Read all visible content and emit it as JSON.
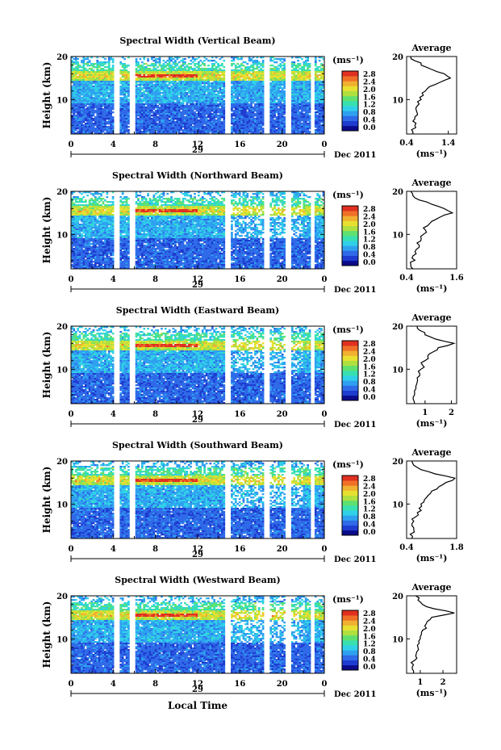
{
  "figure": {
    "xaxis_title": "Local Time",
    "date_label": "Dec 2011",
    "day_label": "29",
    "ylabel": "Height (km)",
    "unit_label": "(ms⁻¹)",
    "avg_title": "Average",
    "colorbar_ticks": [
      "0.0",
      "0.4",
      "0.8",
      "1.2",
      "1.6",
      "2.0",
      "2.4",
      "2.8"
    ],
    "colormap": [
      "#0b0b8a",
      "#1e3cd0",
      "#2f6ae8",
      "#2fa0f0",
      "#30d0e8",
      "#38e0b0",
      "#60e070",
      "#b0e040",
      "#e8e030",
      "#f0b030",
      "#f07028",
      "#e03020"
    ]
  },
  "chart_data": [
    {
      "type": "heatmap",
      "title": "Spectral Width (Vertical Beam)",
      "xlabel": "Local Time",
      "ylabel": "Height (km)",
      "xlim": [
        0,
        24
      ],
      "xticks": [
        "0",
        "4",
        "8",
        "12",
        "16",
        "20",
        "0"
      ],
      "ylim": [
        2,
        20
      ],
      "yticks": [
        "10",
        "20"
      ],
      "colorbar": {
        "label": "(ms⁻¹)",
        "range": [
          0.0,
          2.8
        ]
      },
      "avg_profile": {
        "title": "Average",
        "xlabel": "(ms⁻¹)",
        "xticks": [
          "0.4",
          "1.4"
        ],
        "xlim": [
          0.4,
          1.6
        ],
        "height_km": [
          2,
          3,
          4,
          5,
          6,
          7,
          8,
          9,
          10,
          11,
          12,
          13,
          14,
          15,
          16,
          17,
          18,
          19,
          20
        ],
        "value": [
          0.55,
          0.52,
          0.6,
          0.55,
          0.6,
          0.65,
          0.62,
          0.7,
          0.75,
          0.8,
          0.85,
          0.95,
          1.2,
          1.45,
          1.3,
          1.0,
          0.75,
          0.6,
          0.5
        ]
      }
    },
    {
      "type": "heatmap",
      "title": "Spectral Width (Northward Beam)",
      "xlabel": "Local Time",
      "ylabel": "Height (km)",
      "xlim": [
        0,
        24
      ],
      "xticks": [
        "0",
        "4",
        "8",
        "12",
        "16",
        "20",
        "0"
      ],
      "ylim": [
        2,
        20
      ],
      "yticks": [
        "10",
        "20"
      ],
      "colorbar": {
        "label": "(ms⁻¹)",
        "range": [
          0.0,
          2.8
        ]
      },
      "avg_profile": {
        "title": "Average",
        "xlabel": "(ms⁻¹)",
        "xticks": [
          "0.4",
          "1.6"
        ],
        "xlim": [
          0.4,
          1.6
        ],
        "height_km": [
          2,
          3,
          4,
          5,
          6,
          7,
          8,
          9,
          10,
          11,
          12,
          13,
          14,
          15,
          16,
          17,
          18,
          19,
          20
        ],
        "value": [
          0.55,
          0.5,
          0.6,
          0.55,
          0.6,
          0.7,
          0.65,
          0.75,
          0.8,
          0.85,
          0.9,
          1.0,
          1.2,
          1.5,
          1.3,
          1.0,
          0.7,
          0.55,
          0.5
        ]
      }
    },
    {
      "type": "heatmap",
      "title": "Spectral Width (Eastward Beam)",
      "xlabel": "Local Time",
      "ylabel": "Height (km)",
      "xlim": [
        0,
        24
      ],
      "xticks": [
        "0",
        "4",
        "8",
        "12",
        "16",
        "20",
        "0"
      ],
      "ylim": [
        2,
        20
      ],
      "yticks": [
        "10",
        "20"
      ],
      "colorbar": {
        "label": "(ms⁻¹)",
        "range": [
          0.0,
          2.8
        ]
      },
      "avg_profile": {
        "title": "Average",
        "xlabel": "(ms⁻¹)",
        "xticks": [
          "1",
          "2"
        ],
        "xlim": [
          0.3,
          2.2
        ],
        "height_km": [
          2,
          3,
          4,
          5,
          6,
          7,
          8,
          9,
          10,
          11,
          12,
          13,
          14,
          15,
          16,
          17,
          18,
          19,
          20
        ],
        "value": [
          0.6,
          0.55,
          0.6,
          0.6,
          0.65,
          0.7,
          0.7,
          0.8,
          0.85,
          0.9,
          1.0,
          1.1,
          1.3,
          1.5,
          2.1,
          1.4,
          1.0,
          0.8,
          0.7
        ]
      }
    },
    {
      "type": "heatmap",
      "title": "Spectral Width (Southward Beam)",
      "xlabel": "Local Time",
      "ylabel": "Height (km)",
      "xlim": [
        0,
        24
      ],
      "xticks": [
        "0",
        "4",
        "8",
        "12",
        "16",
        "20",
        "0"
      ],
      "ylim": [
        2,
        20
      ],
      "yticks": [
        "10",
        "20"
      ],
      "colorbar": {
        "label": "(ms⁻¹)",
        "range": [
          0.0,
          2.8
        ]
      },
      "avg_profile": {
        "title": "Average",
        "xlabel": "(ms⁻¹)",
        "xticks": [
          "0.4",
          "1.8"
        ],
        "xlim": [
          0.4,
          1.8
        ],
        "height_km": [
          2,
          3,
          4,
          5,
          6,
          7,
          8,
          9,
          10,
          11,
          12,
          13,
          14,
          15,
          16,
          17,
          18,
          19,
          20
        ],
        "value": [
          0.55,
          0.5,
          0.6,
          0.55,
          0.6,
          0.65,
          0.7,
          0.75,
          0.8,
          0.9,
          1.0,
          1.1,
          1.3,
          1.5,
          1.75,
          1.2,
          0.8,
          0.6,
          0.55
        ]
      }
    },
    {
      "type": "heatmap",
      "title": "Spectral Width (Westward Beam)",
      "xlabel": "Local Time",
      "ylabel": "Height (km)",
      "xlim": [
        0,
        24
      ],
      "xticks": [
        "0",
        "4",
        "8",
        "12",
        "16",
        "20",
        "0"
      ],
      "ylim": [
        2,
        20
      ],
      "yticks": [
        "10",
        "20"
      ],
      "colorbar": {
        "label": "(ms⁻¹)",
        "range": [
          0.0,
          2.8
        ]
      },
      "avg_profile": {
        "title": "Average",
        "xlabel": "(ms⁻¹)",
        "xticks": [
          "1",
          "2"
        ],
        "xlim": [
          0.4,
          2.6
        ],
        "height_km": [
          2,
          3,
          4,
          5,
          6,
          7,
          8,
          9,
          10,
          11,
          12,
          13,
          14,
          15,
          16,
          17,
          18,
          19,
          20
        ],
        "value": [
          0.7,
          0.65,
          0.7,
          0.75,
          0.8,
          0.85,
          0.9,
          0.95,
          1.0,
          1.05,
          1.1,
          1.2,
          1.3,
          1.5,
          2.5,
          1.6,
          1.1,
          0.9,
          0.8
        ]
      }
    }
  ]
}
